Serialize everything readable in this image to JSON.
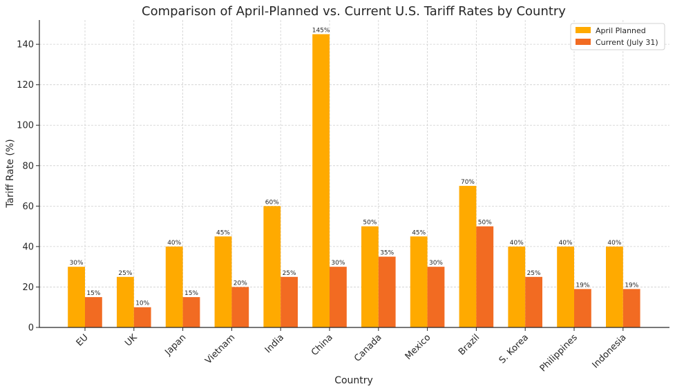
{
  "chart_data": {
    "type": "bar",
    "title": "Comparison of April-Planned vs. Current U.S. Tariff Rates by Country",
    "xlabel": "Country",
    "ylabel": "Tariff Rate (%)",
    "ylim": [
      0,
      152
    ],
    "yticks": [
      0,
      20,
      40,
      60,
      80,
      100,
      120,
      140
    ],
    "grid": true,
    "legend_position": "top-right",
    "categories": [
      "EU",
      "UK",
      "Japan",
      "Vietnam",
      "India",
      "China",
      "Canada",
      "Mexico",
      "Brazil",
      "S. Korea",
      "Philippines",
      "Indonesia"
    ],
    "series": [
      {
        "name": "April Planned",
        "color": "#FFAA00",
        "values": [
          30,
          25,
          40,
          45,
          60,
          145,
          50,
          45,
          70,
          40,
          40,
          40
        ],
        "labels": [
          "30%",
          "25%",
          "40%",
          "45%",
          "60%",
          "145%",
          "50%",
          "45%",
          "70%",
          "40%",
          "40%",
          "40%"
        ]
      },
      {
        "name": "Current (July 31)",
        "color": "#F26B22",
        "values": [
          15,
          10,
          15,
          20,
          25,
          30,
          35,
          30,
          50,
          25,
          19,
          19
        ],
        "labels": [
          "15%",
          "10%",
          "15%",
          "20%",
          "25%",
          "30%",
          "35%",
          "30%",
          "50%",
          "25%",
          "19%",
          "19%"
        ]
      }
    ]
  }
}
